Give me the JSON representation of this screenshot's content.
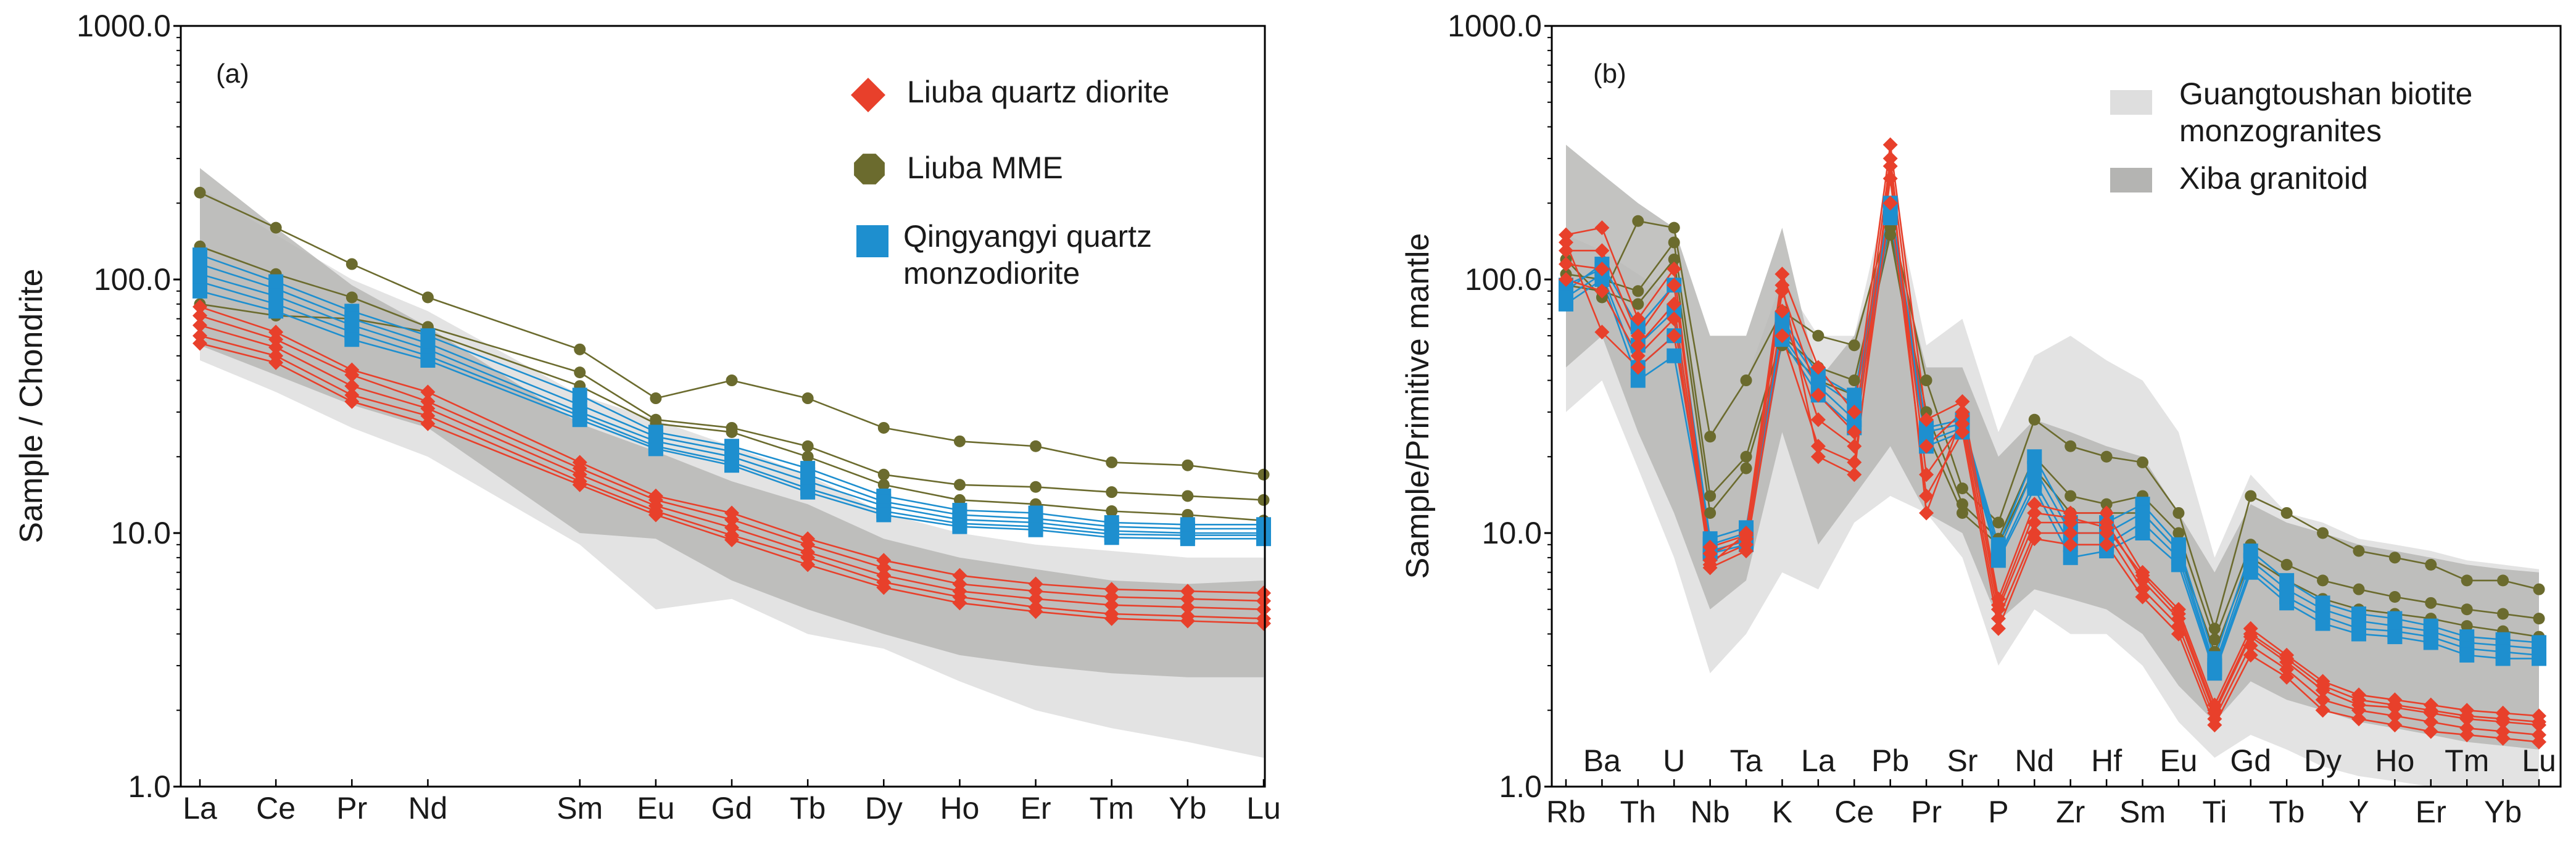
{
  "colors": {
    "red": "#e8402b",
    "olive": "#6b6b2e",
    "blue": "#1e8fcf",
    "light_field": "#dedede",
    "dark_field": "#b4b4b2"
  },
  "chart_data": [
    {
      "type": "line",
      "scale": "log",
      "panel_label": "(a)",
      "ylabel": "Sample / Chondrite",
      "ylim": [
        1,
        1000
      ],
      "y_ticks": [
        "1000.0",
        "100.0",
        "10.0",
        "1.0"
      ],
      "categories": [
        "La",
        "Ce",
        "Pr",
        "Nd",
        "Sm",
        "Eu",
        "Gd",
        "Tb",
        "Dy",
        "Ho",
        "Er",
        "Tm",
        "Yb",
        "Lu"
      ],
      "x_positions": [
        0,
        1,
        2,
        3,
        5,
        6,
        7,
        8,
        9,
        10,
        11,
        12,
        13,
        14
      ],
      "legend": [
        {
          "label": "Liuba quartz diorite",
          "marker": "diamond",
          "color": "#e8402b"
        },
        {
          "label": "Liuba MME",
          "marker": "octagon",
          "color": "#6b6b2e"
        },
        {
          "label": "Qingyangyi quartz\nmonzodiorite",
          "marker": "square",
          "color": "#1e8fcf"
        }
      ],
      "fields": [
        {
          "name": "light",
          "upper": [
            230,
            150,
            100,
            75,
            35,
            28,
            22,
            17,
            12,
            10,
            9,
            8.5,
            8,
            8
          ],
          "lower": [
            48,
            36,
            26,
            20,
            9,
            5,
            5.5,
            4,
            3.5,
            2.6,
            2,
            1.7,
            1.5,
            1.3
          ]
        },
        {
          "name": "dark",
          "upper": [
            275,
            160,
            95,
            65,
            27,
            21,
            16,
            13,
            9.5,
            8,
            7.2,
            6.5,
            6.3,
            6.5
          ],
          "lower": [
            55,
            42,
            32,
            26,
            10,
            9.5,
            6.5,
            5,
            4,
            3.3,
            3,
            2.8,
            2.7,
            2.7
          ]
        }
      ],
      "series": [
        {
          "name": "Liuba quartz diorite",
          "group": "red",
          "values": [
            78,
            62,
            44,
            36,
            19,
            14,
            12,
            9.5,
            7.8,
            6.8,
            6.3,
            6.0,
            5.9,
            5.8
          ]
        },
        {
          "name": "Liuba quartz diorite",
          "group": "red",
          "values": [
            72,
            58,
            42,
            33,
            18,
            13.5,
            11.3,
            9,
            7.3,
            6.3,
            5.9,
            5.6,
            5.5,
            5.4
          ]
        },
        {
          "name": "Liuba quartz diorite",
          "group": "red",
          "values": [
            66,
            54,
            38,
            31,
            17,
            12.8,
            10.5,
            8.4,
            6.8,
            5.9,
            5.5,
            5.2,
            5.1,
            5.0
          ]
        },
        {
          "name": "Liuba quartz diorite",
          "group": "red",
          "values": [
            60,
            50,
            35,
            29,
            16,
            12.2,
            9.8,
            8,
            6.4,
            5.6,
            5.1,
            4.8,
            4.7,
            4.6
          ]
        },
        {
          "name": "Liuba quartz diorite",
          "group": "red",
          "values": [
            56,
            47,
            33,
            27,
            15.5,
            11.8,
            9.4,
            7.5,
            6.1,
            5.3,
            4.9,
            4.6,
            4.5,
            4.4
          ]
        },
        {
          "name": "Liuba MME",
          "group": "olive",
          "values": [
            220,
            160,
            115,
            85,
            53,
            34,
            40,
            34,
            26,
            23,
            22,
            19,
            18.5,
            17
          ]
        },
        {
          "name": "Liuba MME",
          "group": "olive",
          "values": [
            135,
            105,
            85,
            65,
            43,
            28,
            26,
            22,
            17,
            15.5,
            15.2,
            14.5,
            14,
            13.5
          ]
        },
        {
          "name": "Liuba MME",
          "group": "olive",
          "values": [
            80,
            72,
            70,
            62,
            38,
            27,
            25,
            20,
            15.5,
            13.5,
            13,
            12.2,
            11.8,
            11.2
          ]
        },
        {
          "name": "Qingyangyi quartz monzodiorite",
          "group": "blue",
          "values": [
            125,
            98,
            75,
            60,
            35,
            25,
            22,
            18,
            14,
            12.3,
            12,
            11,
            10.8,
            10.8
          ]
        },
        {
          "name": "Qingyangyi quartz monzodiorite",
          "group": "blue",
          "values": [
            115,
            92,
            70,
            56,
            32,
            24,
            21,
            17,
            13.3,
            11.8,
            11.4,
            10.6,
            10.4,
            10.4
          ]
        },
        {
          "name": "Qingyangyi quartz monzodiorite",
          "group": "blue",
          "values": [
            105,
            86,
            66,
            53,
            30,
            23,
            20,
            16,
            12.8,
            11.3,
            11,
            10.2,
            10,
            10
          ]
        },
        {
          "name": "Qingyangyi quartz monzodiorite",
          "group": "blue",
          "values": [
            98,
            80,
            62,
            50,
            29,
            22,
            19,
            15,
            12.2,
            10.9,
            10.6,
            9.9,
            9.8,
            9.8
          ]
        },
        {
          "name": "Qingyangyi quartz monzodiorite",
          "group": "blue",
          "values": [
            90,
            75,
            58,
            48,
            28,
            21.5,
            18.5,
            14.5,
            11.8,
            10.6,
            10.3,
            9.6,
            9.5,
            9.5
          ]
        }
      ]
    },
    {
      "type": "line",
      "scale": "log",
      "panel_label": "(b)",
      "ylabel": "Sample/Primitive mantle",
      "ylim": [
        1,
        1000
      ],
      "y_ticks": [
        "1000.0",
        "100.0",
        "10.0",
        "1.0"
      ],
      "categories": [
        "Rb",
        "Ba",
        "Th",
        "U",
        "Nb",
        "Ta",
        "K",
        "La",
        "Ce",
        "Pb",
        "Pr",
        "Sr",
        "P",
        "Nd",
        "Zr",
        "Hf",
        "Sm",
        "Eu",
        "Ti",
        "Gd",
        "Tb",
        "Dy",
        "Y",
        "Ho",
        "Er",
        "Tm",
        "Yb",
        "Lu"
      ],
      "legend": [
        {
          "label": "Guangtoushan biotite\nmonzogranites",
          "marker": "field",
          "color": "#dedede"
        },
        {
          "label": "Xiba granitoid",
          "marker": "field",
          "color": "#b4b4b2"
        }
      ],
      "fields": [
        {
          "name": "light",
          "upper": [
            150,
            130,
            105,
            85,
            25,
            40,
            100,
            60,
            60,
            250,
            55,
            70,
            25,
            50,
            60,
            48,
            40,
            25,
            8,
            17,
            12,
            11,
            9.5,
            9,
            8.5,
            7.8,
            7.5,
            7.2
          ],
          "lower": [
            30,
            40,
            18,
            8,
            2.8,
            4,
            7,
            6,
            11,
            14,
            12,
            8,
            3,
            5,
            4,
            4,
            3,
            1.8,
            1.3,
            1.6,
            1.4,
            1.2,
            1.1,
            1.05,
            1.0,
            1.0,
            1.0,
            1.0
          ]
        },
        {
          "name": "dark",
          "upper": [
            340,
            260,
            200,
            160,
            60,
            60,
            160,
            40,
            60,
            160,
            45,
            45,
            20,
            28,
            25,
            22,
            20,
            12,
            7,
            13,
            11,
            10,
            9,
            8.5,
            8,
            7.5,
            7.2,
            7
          ]
        },
        {
          "name": "dark_lower",
          "values": [
            45,
            60,
            25,
            12,
            5,
            6.5,
            25,
            9,
            14,
            22,
            12,
            10,
            4.5,
            6,
            5.5,
            5,
            4,
            2.5,
            1.8,
            2.6,
            2.2,
            2,
            1.8,
            1.7,
            1.6,
            1.5,
            1.45,
            1.4
          ]
        }
      ],
      "series": [
        {
          "name": "Liuba quartz diorite",
          "group": "red",
          "values": [
            150,
            160,
            70,
            110,
            7.5,
            10,
            105,
            45,
            30,
            340,
            28,
            33,
            5.5,
            13,
            12,
            12,
            7,
            5,
            2.1,
            4.2,
            3.3,
            2.6,
            2.3,
            2.2,
            2.1,
            2.0,
            1.95,
            1.9
          ]
        },
        {
          "name": "Liuba quartz diorite",
          "group": "red",
          "values": [
            130,
            130,
            60,
            95,
            8.3,
            9.5,
            90,
            35,
            25,
            300,
            22,
            30,
            5,
            11,
            11,
            11,
            6.5,
            4.6,
            1.95,
            3.9,
            3.1,
            2.4,
            2.1,
            2.05,
            1.95,
            1.85,
            1.8,
            1.75
          ]
        },
        {
          "name": "Liuba quartz diorite",
          "group": "red",
          "values": [
            115,
            110,
            55,
            80,
            7.8,
            9,
            75,
            28,
            22,
            250,
            17,
            27,
            4.6,
            10,
            10,
            10,
            6,
            4.3,
            1.85,
            3.6,
            2.9,
            2.2,
            2.0,
            1.9,
            1.8,
            1.7,
            1.65,
            1.6
          ]
        },
        {
          "name": "Liuba quartz diorite",
          "group": "red",
          "values": [
            100,
            90,
            50,
            70,
            7.3,
            8.5,
            60,
            22,
            19,
            200,
            14,
            25,
            4.2,
            9.5,
            9,
            9,
            5.6,
            4.0,
            1.75,
            3.3,
            2.7,
            2.0,
            1.85,
            1.75,
            1.65,
            1.6,
            1.55,
            1.5
          ]
        },
        {
          "name": "Liuba quartz diorite",
          "group": "red",
          "values": [
            140,
            62,
            45,
            60,
            8.8,
            9.8,
            95,
            20,
            17,
            280,
            12,
            29,
            5.2,
            12,
            11.5,
            10.5,
            6.8,
            4.8,
            2.0,
            4.0,
            3.2,
            2.5,
            2.2,
            2.1,
            2.0,
            1.9,
            1.85,
            1.8
          ]
        },
        {
          "name": "Liuba MME",
          "group": "olive",
          "values": [
            120,
            85,
            170,
            160,
            24,
            40,
            75,
            60,
            55,
            180,
            40,
            15,
            11,
            28,
            22,
            20,
            19,
            12,
            4.2,
            14,
            12,
            10,
            8.5,
            8,
            7.5,
            6.5,
            6.5,
            6
          ]
        },
        {
          "name": "Liuba MME",
          "group": "olive",
          "values": [
            105,
            100,
            90,
            140,
            14,
            20,
            60,
            45,
            40,
            160,
            30,
            13,
            9.5,
            20,
            14,
            13,
            14,
            10,
            3.8,
            9,
            7.5,
            6.5,
            6,
            5.6,
            5.3,
            5,
            4.8,
            4.6
          ]
        },
        {
          "name": "Liuba MME",
          "group": "olive",
          "values": [
            95,
            90,
            80,
            120,
            12,
            18,
            55,
            40,
            35,
            150,
            25,
            12,
            9,
            18,
            12,
            12,
            12,
            8.5,
            3.4,
            8,
            6.5,
            5.5,
            5,
            4.8,
            4.6,
            4.3,
            4.1,
            3.9
          ]
        },
        {
          "name": "Qingyangyi quartz monzodiorite",
          "group": "blue",
          "values": [
            90,
            115,
            65,
            95,
            9.5,
            10.5,
            70,
            42,
            35,
            200,
            26,
            28,
            9,
            20,
            11,
            11,
            13,
            9,
            3.2,
            8.5,
            6.5,
            5.3,
            4.8,
            4.6,
            4.3,
            3.9,
            3.8,
            3.7
          ]
        },
        {
          "name": "Qingyangyi quartz monzodiorite",
          "group": "blue",
          "values": [
            95,
            110,
            55,
            75,
            9,
            10,
            65,
            40,
            32,
            190,
            25,
            27,
            8.5,
            18,
            10,
            10,
            12,
            8.5,
            3.0,
            7.8,
            6,
            5,
            4.5,
            4.3,
            4.1,
            3.7,
            3.6,
            3.5
          ]
        },
        {
          "name": "Qingyangyi quartz monzodiorite",
          "group": "blue",
          "values": [
            85,
            105,
            45,
            60,
            8.5,
            9.3,
            60,
            38,
            28,
            180,
            23,
            26,
            8,
            16,
            9,
            9,
            11,
            8,
            2.9,
            7.3,
            5.6,
            4.7,
            4.2,
            4.1,
            3.9,
            3.5,
            3.4,
            3.3
          ]
        },
        {
          "name": "Qingyangyi quartz monzodiorite",
          "group": "blue",
          "values": [
            80,
            100,
            40,
            50,
            8.3,
            9,
            58,
            35,
            26,
            175,
            22,
            25,
            7.8,
            15,
            8,
            8.5,
            10,
            7.5,
            2.8,
            7,
            5.3,
            4.4,
            4,
            3.9,
            3.7,
            3.3,
            3.2,
            3.2
          ]
        }
      ]
    }
  ]
}
